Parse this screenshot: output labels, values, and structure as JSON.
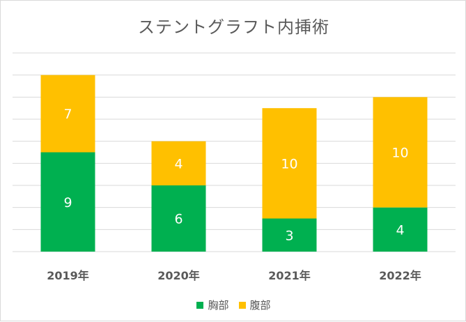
{
  "chart_data": {
    "type": "bar",
    "stacked": true,
    "title": "ステントグラフト内挿術",
    "categories": [
      "2019年",
      "2020年",
      "2021年",
      "2022年"
    ],
    "series": [
      {
        "name": "胸部",
        "values": [
          9,
          6,
          3,
          4
        ],
        "color": "#00b050"
      },
      {
        "name": "腹部",
        "values": [
          7,
          4,
          10,
          10
        ],
        "color": "#ffc000"
      }
    ],
    "ylim": [
      0,
      18
    ],
    "grid": true,
    "legend_position": "bottom"
  }
}
